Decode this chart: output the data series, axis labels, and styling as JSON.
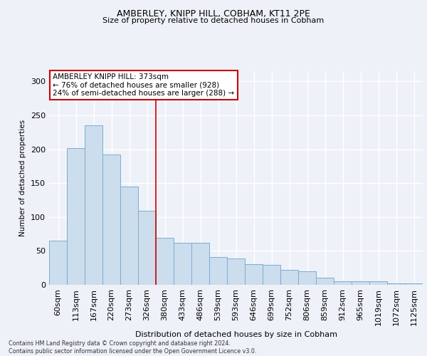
{
  "title1": "AMBERLEY, KNIPP HILL, COBHAM, KT11 2PE",
  "title2": "Size of property relative to detached houses in Cobham",
  "xlabel": "Distribution of detached houses by size in Cobham",
  "ylabel": "Number of detached properties",
  "bar_labels": [
    "60sqm",
    "113sqm",
    "167sqm",
    "220sqm",
    "273sqm",
    "326sqm",
    "380sqm",
    "433sqm",
    "486sqm",
    "539sqm",
    "593sqm",
    "646sqm",
    "699sqm",
    "752sqm",
    "806sqm",
    "859sqm",
    "912sqm",
    "965sqm",
    "1019sqm",
    "1072sqm",
    "1125sqm"
  ],
  "bar_values": [
    65,
    202,
    235,
    192,
    145,
    109,
    69,
    62,
    62,
    41,
    39,
    30,
    29,
    22,
    20,
    10,
    5,
    5,
    5,
    2,
    2
  ],
  "bar_color": "#ccdded",
  "bar_edge_color": "#7aadd4",
  "annotation_text": "AMBERLEY KNIPP HILL: 373sqm\n← 76% of detached houses are smaller (928)\n24% of semi-detached houses are larger (288) →",
  "annotation_box_color": "white",
  "annotation_border_color": "#cc0000",
  "red_line_x": 5.5,
  "footer_text": "Contains HM Land Registry data © Crown copyright and database right 2024.\nContains public sector information licensed under the Open Government Licence v3.0.",
  "ylim": [
    0,
    315
  ],
  "yticks": [
    0,
    50,
    100,
    150,
    200,
    250,
    300
  ],
  "background_color": "#eef2f8",
  "grid_color": "#ffffff"
}
